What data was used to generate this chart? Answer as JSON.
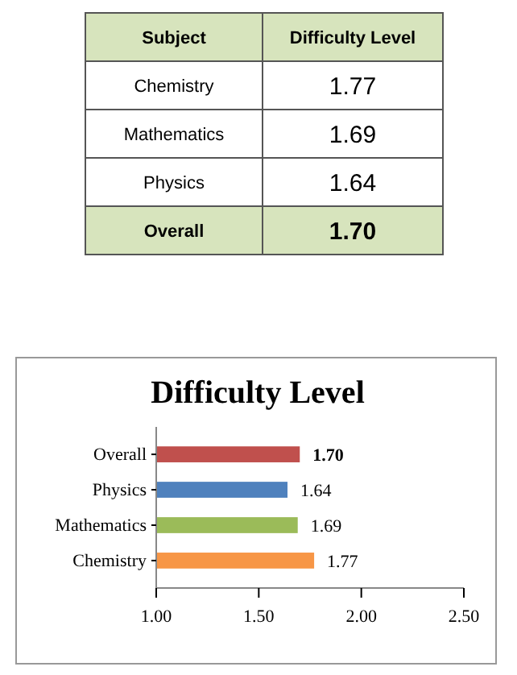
{
  "chart_data": [
    {
      "type": "other",
      "annotations": [
        "Subject",
        "Difficulty Level",
        "Chemistry",
        "1.77",
        "Mathematics",
        "1.69",
        "Physics",
        "1.64",
        "Overall",
        "1.70"
      ]
    },
    {
      "type": "bar",
      "orientation": "horizontal",
      "title": "Difficulty Level",
      "categories": [
        "Overall",
        "Physics",
        "Mathematics",
        "Chemistry"
      ],
      "values": [
        1.7,
        1.64,
        1.69,
        1.77
      ],
      "colors": [
        "#c0504d",
        "#4f81bd",
        "#9bbb59",
        "#f79646"
      ],
      "value_labels": [
        "1.70",
        "1.64",
        "1.69",
        "1.77"
      ],
      "xlim": [
        1,
        2.5
      ],
      "xticks": [
        {
          "value": 1,
          "label": "1.00"
        },
        {
          "value": 1.5,
          "label": "1.50"
        },
        {
          "value": 2,
          "label": "2.00"
        },
        {
          "value": 2.5,
          "label": "2.50"
        }
      ],
      "grid": false
    }
  ]
}
